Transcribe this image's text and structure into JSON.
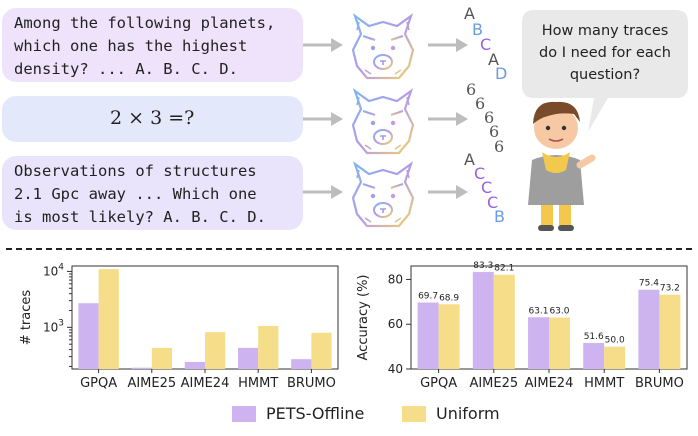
{
  "questions": [
    {
      "lines": [
        "Among the following planets,",
        "which one has the highest",
        "density? ... A. B. C. D."
      ]
    },
    {
      "math": "2 × 3 =?"
    },
    {
      "lines": [
        "Observations of structures",
        "2.1 Gpc away ... Which one",
        "is most likely? A. B. C. D."
      ]
    }
  ],
  "bubble": {
    "lines": [
      "How many traces",
      "do I need for each",
      "question?"
    ]
  },
  "answers": {
    "row1": [
      "A",
      "B",
      "C",
      "A",
      "D"
    ],
    "row2": [
      "6",
      "6",
      "6",
      "6",
      "6"
    ],
    "row3": [
      "A",
      "C",
      "C",
      "C",
      "B"
    ]
  },
  "colors": {
    "pets": "#cdb4f0",
    "uniform": "#f6dd8a",
    "box1": "#efe3fb",
    "box2": "#e3e8fb",
    "box3": "#e9e4fb"
  },
  "chart_data": [
    {
      "type": "bar",
      "categories": [
        "GPQA",
        "AIME25",
        "AIME24",
        "HMMT",
        "BRUMO"
      ],
      "ylabel": "# traces",
      "yscale": "log",
      "yticks": [
        "10^3",
        "10^4"
      ],
      "series": [
        {
          "name": "PETS-Offline",
          "values": [
            2700,
            190,
            240,
            430,
            270
          ]
        },
        {
          "name": "Uniform",
          "values": [
            11000,
            430,
            820,
            1060,
            800
          ]
        }
      ]
    },
    {
      "type": "bar",
      "categories": [
        "GPQA",
        "AIME25",
        "AIME24",
        "HMMT",
        "BRUMO"
      ],
      "ylabel": "Accuracy (%)",
      "ylim": [
        40,
        86
      ],
      "yticks": [
        40,
        60,
        80
      ],
      "series": [
        {
          "name": "PETS-Offline",
          "values": [
            69.7,
            83.3,
            63.1,
            51.6,
            75.4
          ]
        },
        {
          "name": "Uniform",
          "values": [
            68.9,
            82.1,
            63.0,
            50.0,
            73.2
          ]
        }
      ]
    }
  ],
  "legend": {
    "items": [
      "PETS-Offline",
      "Uniform"
    ]
  }
}
